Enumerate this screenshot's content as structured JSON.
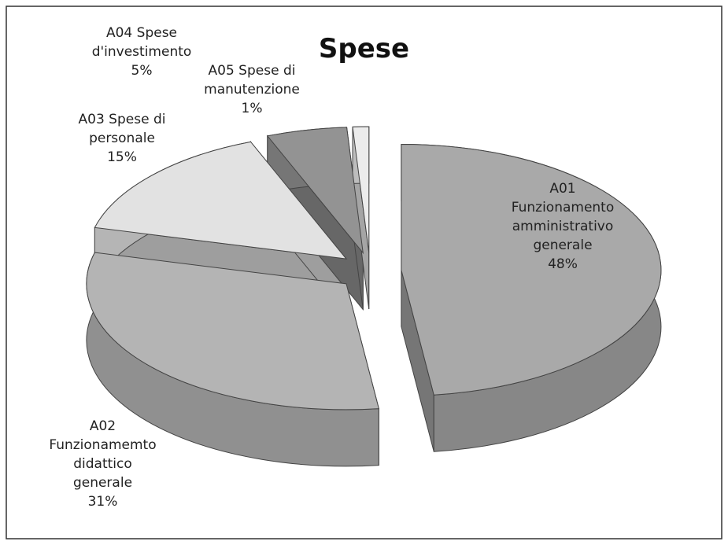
{
  "chart_data": {
    "type": "pie3d",
    "title": "Spese",
    "categories": [
      "A01 Funzionamento amministrativo generale",
      "A02 Funzionamemto didattico generale",
      "A03 Spese di personale",
      "A04 Spese d'investimento",
      "A05 Spese di manutenzione"
    ],
    "values": [
      48,
      31,
      15,
      5,
      1
    ],
    "value_labels": [
      "48%",
      "31%",
      "15%",
      "5%",
      "1%"
    ],
    "colors": [
      "#a9a9a9",
      "#b4b4b4",
      "#e2e2e2",
      "#939393",
      "#ececec"
    ]
  }
}
